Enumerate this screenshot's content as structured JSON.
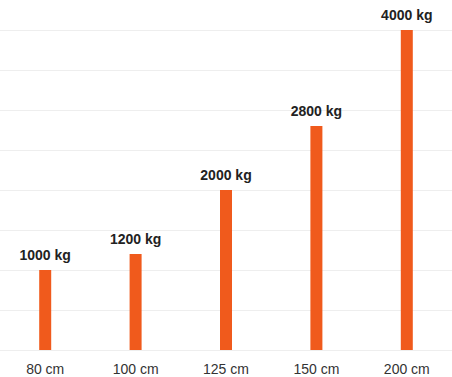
{
  "chart_data": {
    "type": "bar",
    "categories": [
      "80 cm",
      "100 cm",
      "125 cm",
      "150 cm",
      "200 cm"
    ],
    "values": [
      1000,
      1200,
      2000,
      2800,
      4000
    ],
    "value_labels": [
      "1000 kg",
      "1200 kg",
      "2000 kg",
      "2800 kg",
      "4000 kg"
    ],
    "color": "#f05a1c",
    "ylim": [
      0,
      4000
    ],
    "yticks": [
      0,
      500,
      1000,
      1500,
      2000,
      2500,
      3000,
      3500,
      4000
    ],
    "grid": true,
    "data_labels": true,
    "tick_labels": "x"
  }
}
